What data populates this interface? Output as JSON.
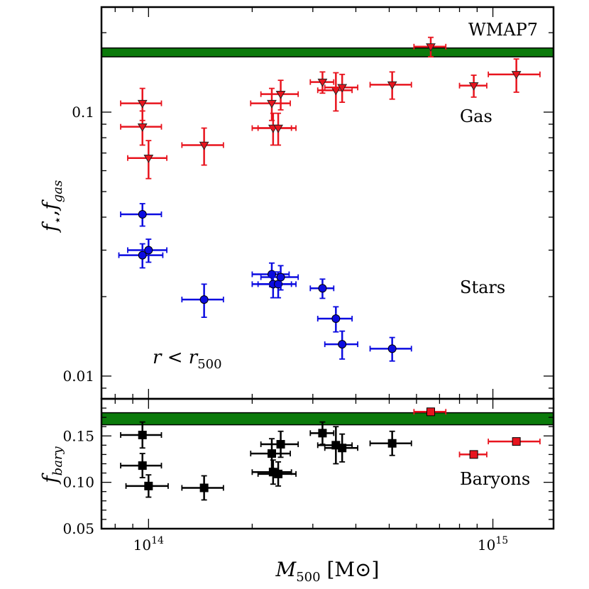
{
  "chart_data": [
    {
      "type": "scatter",
      "panel": "top",
      "xscale": "log",
      "yscale": "log",
      "xlim": [
        73000000000000.0,
        1500000000000000.0
      ],
      "ylim": [
        0.0082,
        0.25
      ],
      "ylabel": "f⋆,fgas",
      "y_ticks": [
        {
          "value": 0.1,
          "label": "0.1"
        },
        {
          "value": 0.01,
          "label": "0.01"
        }
      ],
      "band": {
        "label": "WMAP7",
        "y_low": 0.162,
        "y_high": 0.175,
        "color": "#0b7a0b"
      },
      "annotation": "r<r500",
      "series": [
        {
          "name": "Gas",
          "color": "#e8141e",
          "marker": "triangle-down",
          "points": [
            {
              "x": 96000000000000.0,
              "y": 0.108,
              "xerr": 13000000000000.0,
              "yerr": 0.015
            },
            {
              "x": 96000000000000.0,
              "y": 0.088,
              "xerr": 13000000000000.0,
              "yerr": 0.013
            },
            {
              "x": 100000000000000.0,
              "y": 0.067,
              "xerr": 13000000000000.0,
              "yerr": 0.011
            },
            {
              "x": 145000000000000.0,
              "y": 0.075,
              "xerr": 20000000000000.0,
              "yerr": 0.012
            },
            {
              "x": 228000000000000.0,
              "y": 0.108,
              "xerr": 30000000000000.0,
              "yerr": 0.015
            },
            {
              "x": 230000000000000.0,
              "y": 0.087,
              "xerr": 30000000000000.0,
              "yerr": 0.012
            },
            {
              "x": 238000000000000.0,
              "y": 0.087,
              "xerr": 30000000000000.0,
              "yerr": 0.012
            },
            {
              "x": 242000000000000.0,
              "y": 0.117,
              "xerr": 30000000000000.0,
              "yerr": 0.015
            },
            {
              "x": 320000000000000.0,
              "y": 0.13,
              "xerr": 25000000000000.0,
              "yerr": 0.012
            },
            {
              "x": 350000000000000.0,
              "y": 0.121,
              "xerr": 40000000000000.0,
              "yerr": 0.02
            },
            {
              "x": 365000000000000.0,
              "y": 0.124,
              "xerr": 40000000000000.0,
              "yerr": 0.015
            },
            {
              "x": 510000000000000.0,
              "y": 0.127,
              "xerr": 70000000000000.0,
              "yerr": 0.015
            },
            {
              "x": 660000000000000.0,
              "y": 0.177,
              "xerr": 70000000000000.0,
              "yerr": 0.015
            },
            {
              "x": 880000000000000.0,
              "y": 0.126,
              "xerr": 80000000000000.0,
              "yerr": 0.012
            },
            {
              "x": 1170000000000000.0,
              "y": 0.139,
              "xerr": 200000000000000.0,
              "yerr": 0.02
            }
          ]
        },
        {
          "name": "Stars",
          "color": "#0b0be0",
          "marker": "circle",
          "points": [
            {
              "x": 96000000000000.0,
              "y": 0.041,
              "xerr": 13000000000000.0,
              "yerr": 0.004
            },
            {
              "x": 96000000000000.0,
              "y": 0.0287,
              "xerr": 14000000000000.0,
              "yerr": 0.003
            },
            {
              "x": 100000000000000.0,
              "y": 0.03,
              "xerr": 13000000000000.0,
              "yerr": 0.003
            },
            {
              "x": 145000000000000.0,
              "y": 0.0195,
              "xerr": 20000000000000.0,
              "yerr": 0.0028
            },
            {
              "x": 228000000000000.0,
              "y": 0.0243,
              "xerr": 28000000000000.0,
              "yerr": 0.0025
            },
            {
              "x": 230000000000000.0,
              "y": 0.0223,
              "xerr": 30000000000000.0,
              "yerr": 0.0025
            },
            {
              "x": 238000000000000.0,
              "y": 0.0223,
              "xerr": 30000000000000.0,
              "yerr": 0.0025
            },
            {
              "x": 242000000000000.0,
              "y": 0.0237,
              "xerr": 30000000000000.0,
              "yerr": 0.0025
            },
            {
              "x": 320000000000000.0,
              "y": 0.0215,
              "xerr": 25000000000000.0,
              "yerr": 0.0018
            },
            {
              "x": 350000000000000.0,
              "y": 0.0165,
              "xerr": 40000000000000.0,
              "yerr": 0.0018
            },
            {
              "x": 365000000000000.0,
              "y": 0.0132,
              "xerr": 40000000000000.0,
              "yerr": 0.0016
            },
            {
              "x": 510000000000000.0,
              "y": 0.0127,
              "xerr": 70000000000000.0,
              "yerr": 0.0013
            }
          ]
        }
      ],
      "series_labels": [
        {
          "text": "Gas",
          "color": "#e8141e"
        },
        {
          "text": "Stars",
          "color": "#0b0be0"
        }
      ]
    },
    {
      "type": "scatter",
      "panel": "bottom",
      "xscale": "log",
      "yscale": "linear",
      "xlim": [
        73000000000000.0,
        1500000000000000.0
      ],
      "ylim": [
        0.05,
        0.19
      ],
      "xlabel": "M500 [M⊙]",
      "ylabel": "fbary",
      "x_ticks": [
        {
          "value": 100000000000000.0,
          "base": "10",
          "exp": "14"
        },
        {
          "value": 1000000000000000.0,
          "base": "10",
          "exp": "15"
        }
      ],
      "y_ticks": [
        {
          "value": 0.05,
          "label": "0.05"
        },
        {
          "value": 0.1,
          "label": "0.10"
        },
        {
          "value": 0.15,
          "label": "0.15"
        }
      ],
      "band": {
        "label": "WMAP7",
        "y_low": 0.162,
        "y_high": 0.175,
        "color": "#0b7a0b"
      },
      "series": [
        {
          "name": "Baryons",
          "color": "#000000",
          "marker": "square",
          "points": [
            {
              "x": 96000000000000.0,
              "y": 0.151,
              "xerr": 13000000000000.0,
              "yerr": 0.014
            },
            {
              "x": 96000000000000.0,
              "y": 0.118,
              "xerr": 13000000000000.0,
              "yerr": 0.013
            },
            {
              "x": 100000000000000.0,
              "y": 0.096,
              "xerr": 14000000000000.0,
              "yerr": 0.012
            },
            {
              "x": 145000000000000.0,
              "y": 0.094,
              "xerr": 20000000000000.0,
              "yerr": 0.013
            },
            {
              "x": 228000000000000.0,
              "y": 0.131,
              "xerr": 30000000000000.0,
              "yerr": 0.016
            },
            {
              "x": 230000000000000.0,
              "y": 0.111,
              "xerr": 30000000000000.0,
              "yerr": 0.013
            },
            {
              "x": 238000000000000.0,
              "y": 0.109,
              "xerr": 30000000000000.0,
              "yerr": 0.013
            },
            {
              "x": 242000000000000.0,
              "y": 0.141,
              "xerr": 30000000000000.0,
              "yerr": 0.014
            },
            {
              "x": 320000000000000.0,
              "y": 0.153,
              "xerr": 25000000000000.0,
              "yerr": 0.012
            },
            {
              "x": 350000000000000.0,
              "y": 0.14,
              "xerr": 40000000000000.0,
              "yerr": 0.02
            },
            {
              "x": 365000000000000.0,
              "y": 0.137,
              "xerr": 40000000000000.0,
              "yerr": 0.015
            },
            {
              "x": 510000000000000.0,
              "y": 0.142,
              "xerr": 70000000000000.0,
              "yerr": 0.013
            }
          ]
        },
        {
          "name": "Baryons (red)",
          "color": "#e8141e",
          "marker": "square",
          "points": [
            {
              "x": 660000000000000.0,
              "y": 0.176,
              "xerr": 70000000000000.0,
              "yerr": 0.002
            },
            {
              "x": 880000000000000.0,
              "y": 0.13,
              "xerr": 80000000000000.0,
              "yerr": 0.002
            },
            {
              "x": 1170000000000000.0,
              "y": 0.144,
              "xerr": 200000000000000.0,
              "yerr": 0.002
            }
          ]
        }
      ],
      "series_labels": [
        {
          "text": "Baryons",
          "color": "#000000"
        }
      ]
    }
  ]
}
